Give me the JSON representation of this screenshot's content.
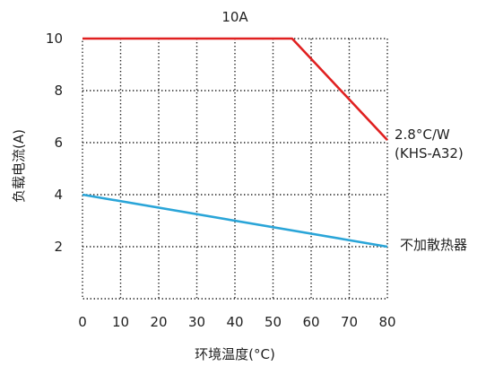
{
  "chart_data": {
    "type": "line",
    "title": "10A",
    "xlabel": "环境温度(°C)",
    "ylabel": "负载电流(A)",
    "xlim": [
      0,
      80
    ],
    "ylim": [
      0,
      10
    ],
    "x_ticks": [
      0,
      10,
      20,
      30,
      40,
      50,
      60,
      70,
      80
    ],
    "y_ticks": [
      2,
      4,
      6,
      8,
      10
    ],
    "grid": true,
    "grid_style": "dotted",
    "series": [
      {
        "name_lines": [
          "2.8°C/W",
          "(KHS-A32)"
        ],
        "color": "#e02020",
        "points": [
          [
            0,
            10
          ],
          [
            55,
            10
          ],
          [
            80,
            6.1
          ]
        ]
      },
      {
        "name_lines": [
          "不加散热器"
        ],
        "color": "#2aa5d8",
        "points": [
          [
            0,
            4
          ],
          [
            80,
            2
          ]
        ]
      }
    ]
  }
}
